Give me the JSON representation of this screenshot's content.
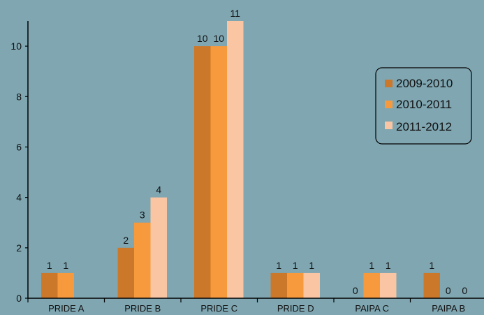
{
  "chart_data": {
    "type": "bar",
    "categories": [
      "PRIDE A",
      "PRIDE B",
      "PRIDE C",
      "PRIDE D",
      "PAIPA C",
      "PAIPA B"
    ],
    "series": [
      {
        "name": "2009-2010",
        "values": [
          1,
          2,
          10,
          1,
          0,
          1
        ],
        "color": "#cc782b"
      },
      {
        "name": "2010-2011",
        "values": [
          1,
          3,
          10,
          1,
          1,
          0
        ],
        "color": "#f79a3e"
      },
      {
        "name": "2011-2012",
        "values": [
          null,
          4,
          11,
          1,
          1,
          0
        ],
        "color": "#fac5a3"
      }
    ],
    "data_labels": [
      [
        "1",
        "2",
        "10",
        "1",
        "0",
        "1"
      ],
      [
        "1",
        "3",
        "10",
        "1",
        "1",
        "0"
      ],
      [
        "",
        "4",
        "11",
        "1",
        "1",
        "0"
      ]
    ],
    "yticks": [
      0,
      2,
      4,
      6,
      8,
      10
    ],
    "ylim": [
      0,
      11
    ],
    "title": "",
    "xlabel": "",
    "ylabel": "",
    "grid": false,
    "legend_position": "right"
  }
}
